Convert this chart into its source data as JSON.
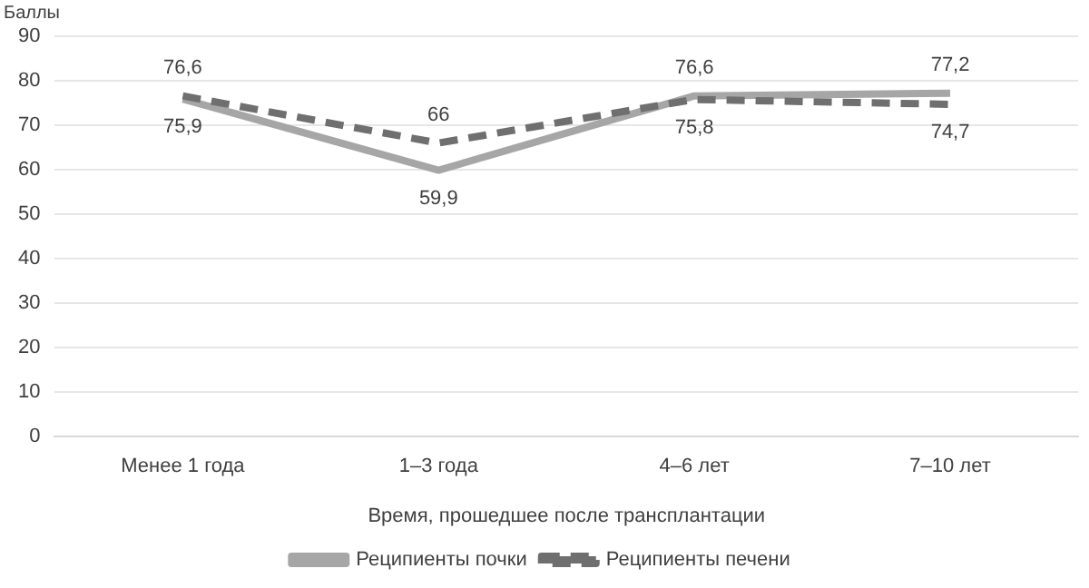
{
  "chart_data": {
    "type": "line",
    "ylabel": "Баллы",
    "xlabel": "Время, прошедшее после трансплантации",
    "categories": [
      "Менее 1 года",
      "1–3 года",
      "4–6 лет",
      "7–10 лет"
    ],
    "series": [
      {
        "name": "Реципиенты почки",
        "color": "#a6a6a6",
        "line_style": "solid",
        "values": [
          75.9,
          59.9,
          76.6,
          77.2
        ],
        "value_labels": [
          "75,9",
          "59,9",
          "76,6",
          "77,2"
        ]
      },
      {
        "name": "Реципиенты печени",
        "color": "#6f6f6f",
        "line_style": "dashed",
        "values": [
          76.6,
          66,
          75.8,
          74.7
        ],
        "value_labels": [
          "76,6",
          "66",
          "75,8",
          "74,7"
        ]
      }
    ],
    "ylim": [
      0,
      90
    ],
    "yticks": [
      0,
      10,
      20,
      30,
      40,
      50,
      60,
      70,
      80,
      90
    ],
    "grid": "y",
    "legend": "bottom",
    "marker": "none"
  }
}
